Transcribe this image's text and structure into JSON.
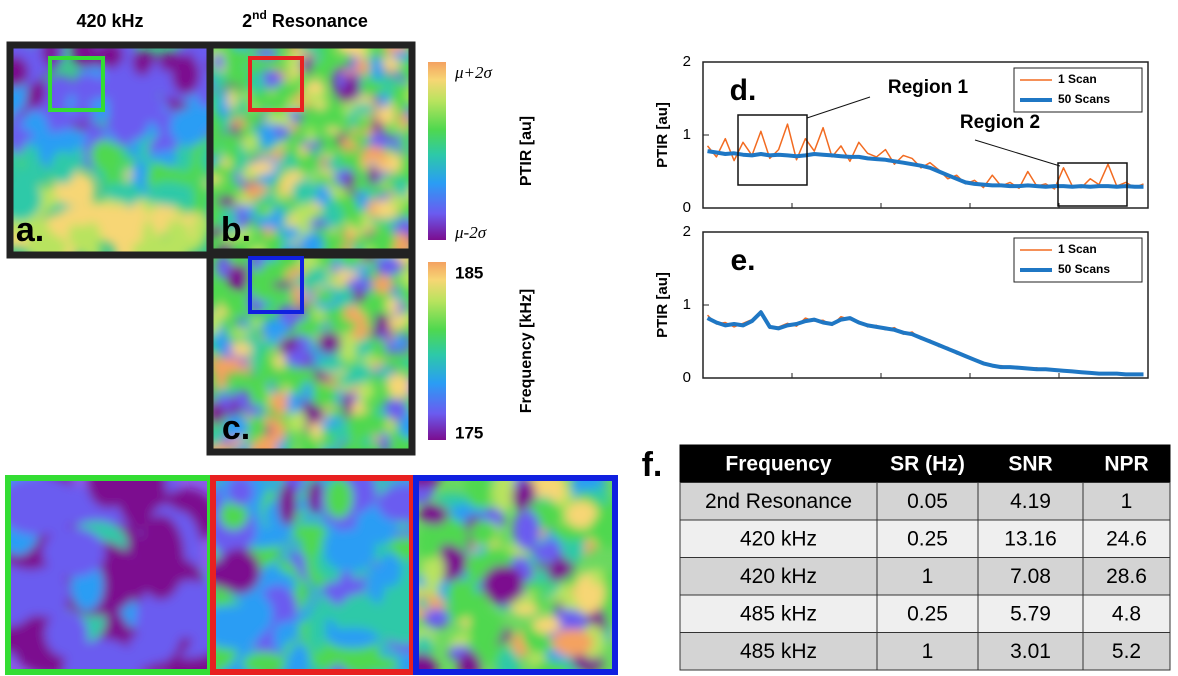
{
  "panels": {
    "column_titles": {
      "first": "420 kHz",
      "second_base": "2",
      "second_sup": "nd",
      "second_rest": " Resonance"
    },
    "letters": {
      "a": "a.",
      "b": "b.",
      "c": "c.",
      "f": "f."
    }
  },
  "colorbars": [
    {
      "label": "PTIR [au]",
      "top": "μ+2σ",
      "bottom": "μ-2σ"
    },
    {
      "label": "Frequency [kHz]",
      "top": "185",
      "bottom": "175"
    }
  ],
  "chart_data": [
    {
      "type": "line",
      "panel": "d.",
      "y_label": "PTIR [au]",
      "ylim": [
        0,
        2
      ],
      "yticks": [
        0,
        1,
        2
      ],
      "annotations": [
        "Region 1",
        "Region 2"
      ],
      "series": [
        {
          "name": "1 Scan",
          "color": "#f26b21",
          "values": [
            0.85,
            0.7,
            0.95,
            0.65,
            0.9,
            0.72,
            1.05,
            0.68,
            0.8,
            1.15,
            0.66,
            0.95,
            0.78,
            1.1,
            0.7,
            0.85,
            0.64,
            0.9,
            0.75,
            0.7,
            0.8,
            0.6,
            0.72,
            0.68,
            0.55,
            0.62,
            0.52,
            0.4,
            0.45,
            0.33,
            0.38,
            0.28,
            0.45,
            0.3,
            0.35,
            0.27,
            0.5,
            0.3,
            0.33,
            0.26,
            0.55,
            0.3,
            0.28,
            0.4,
            0.32,
            0.6,
            0.3,
            0.35,
            0.28,
            0.33
          ]
        },
        {
          "name": "50 Scans",
          "color": "#1f77c4",
          "values": [
            0.78,
            0.76,
            0.74,
            0.75,
            0.73,
            0.72,
            0.74,
            0.72,
            0.73,
            0.72,
            0.71,
            0.72,
            0.74,
            0.73,
            0.72,
            0.71,
            0.7,
            0.7,
            0.68,
            0.67,
            0.66,
            0.64,
            0.62,
            0.6,
            0.58,
            0.55,
            0.5,
            0.45,
            0.4,
            0.35,
            0.33,
            0.32,
            0.31,
            0.31,
            0.3,
            0.3,
            0.31,
            0.3,
            0.29,
            0.3,
            0.3,
            0.29,
            0.3,
            0.29,
            0.3,
            0.3,
            0.29,
            0.3,
            0.29,
            0.29
          ]
        }
      ]
    },
    {
      "type": "line",
      "panel": "e.",
      "y_label": "PTIR [au]",
      "ylim": [
        0,
        2
      ],
      "yticks": [
        0,
        1,
        2
      ],
      "series": [
        {
          "name": "1 Scan",
          "color": "#f26b21",
          "values": [
            0.86,
            0.74,
            0.76,
            0.7,
            0.75,
            0.8,
            0.92,
            0.68,
            0.7,
            0.75,
            0.71,
            0.82,
            0.78,
            0.79,
            0.72,
            0.84,
            0.8,
            0.78,
            0.7,
            0.72,
            0.66,
            0.69,
            0.6,
            0.63,
            0.53,
            0.52,
            0.43,
            0.42,
            0.33,
            0.31,
            0.24,
            0.21,
            0.16,
            0.17,
            0.14,
            0.15,
            0.12,
            0.14,
            0.11,
            0.12,
            0.09,
            0.1,
            0.07,
            0.08,
            0.05,
            0.07,
            0.05,
            0.06,
            0.04,
            0.06
          ]
        },
        {
          "name": "50 Scans",
          "color": "#1f77c4",
          "values": [
            0.82,
            0.76,
            0.72,
            0.74,
            0.72,
            0.78,
            0.9,
            0.7,
            0.68,
            0.72,
            0.74,
            0.78,
            0.8,
            0.76,
            0.74,
            0.8,
            0.82,
            0.76,
            0.72,
            0.7,
            0.68,
            0.66,
            0.62,
            0.6,
            0.55,
            0.5,
            0.45,
            0.4,
            0.35,
            0.3,
            0.25,
            0.2,
            0.17,
            0.15,
            0.15,
            0.14,
            0.13,
            0.12,
            0.12,
            0.11,
            0.1,
            0.09,
            0.08,
            0.07,
            0.06,
            0.06,
            0.06,
            0.05,
            0.05,
            0.05
          ]
        }
      ]
    }
  ],
  "table": {
    "header": [
      "Frequency",
      "SR (Hz)",
      "SNR",
      "NPR"
    ],
    "rows": [
      [
        "2nd Resonance",
        "0.05",
        "4.19",
        "1"
      ],
      [
        "420 kHz",
        "0.25",
        "13.16",
        "24.6"
      ],
      [
        "420 kHz",
        "1",
        "7.08",
        "28.6"
      ],
      [
        "485 kHz",
        "0.25",
        "5.79",
        "4.8"
      ],
      [
        "485 kHz",
        "1",
        "3.01",
        "5.2"
      ]
    ]
  }
}
